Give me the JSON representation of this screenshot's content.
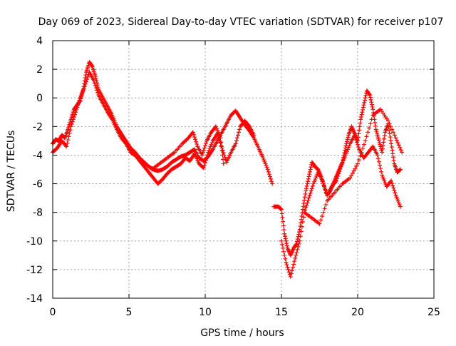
{
  "chart_data": {
    "type": "scatter",
    "title": "Day 069 of 2023, Sidereal Day-to-day VTEC variation (SDTVAR) for receiver p107",
    "xlabel": "GPS time / hours",
    "ylabel": "SDTVAR / TECUs",
    "xlim": [
      0,
      25
    ],
    "ylim": [
      -14,
      4
    ],
    "xticks": [
      0,
      5,
      10,
      15,
      20,
      25
    ],
    "yticks": [
      -14,
      -12,
      -10,
      -8,
      -6,
      -4,
      -2,
      0,
      2,
      4
    ],
    "grid": true,
    "legend": "none",
    "marker": "plus",
    "series_color": "#ff0000",
    "series": [
      {
        "x": [
          0.0,
          0.2,
          0.4,
          0.6,
          0.8,
          1.0,
          1.2,
          1.4,
          1.6,
          1.8,
          2.0,
          2.2,
          2.4,
          2.6,
          2.8,
          3.0,
          3.3,
          3.6,
          3.9,
          4.2,
          4.5,
          4.8,
          5.1,
          5.4,
          5.7,
          6.0,
          6.3,
          6.6,
          6.9,
          7.2,
          7.5,
          7.8,
          8.1,
          8.4,
          8.7,
          9.0,
          9.3,
          9.6,
          9.9,
          10.2,
          10.5,
          10.8,
          11.1,
          11.4,
          11.7,
          12.0,
          12.3,
          12.6,
          12.9,
          13.2,
          13.5,
          13.8,
          14.1,
          14.4
        ],
        "y": [
          -3.2,
          -2.9,
          -3.0,
          -2.6,
          -2.8,
          -2.2,
          -1.5,
          -0.8,
          -0.5,
          -0.2,
          0.6,
          1.8,
          2.5,
          2.2,
          1.5,
          0.6,
          0.0,
          -0.6,
          -1.2,
          -2.0,
          -2.5,
          -3.0,
          -3.5,
          -3.8,
          -4.2,
          -4.5,
          -4.8,
          -5.0,
          -5.1,
          -5.0,
          -4.8,
          -4.5,
          -4.3,
          -4.1,
          -4.0,
          -3.8,
          -3.6,
          -4.2,
          -4.4,
          -4.1,
          -3.6,
          -3.0,
          -2.4,
          -1.8,
          -1.2,
          -0.9,
          -1.4,
          -1.9,
          -2.3,
          -2.8,
          -3.5,
          -4.2,
          -5.0,
          -6.0
        ]
      },
      {
        "x": [
          0.0,
          0.3,
          0.6,
          0.9,
          1.2,
          1.5,
          1.8,
          2.1,
          2.4,
          2.7,
          3.0,
          3.3,
          3.6,
          3.9,
          4.2,
          4.5,
          4.8,
          5.1,
          5.4,
          5.7,
          6.0,
          6.3,
          6.6,
          6.9,
          7.2,
          7.5,
          7.8,
          8.1,
          8.4,
          8.7,
          9.0,
          9.3,
          9.6,
          9.9,
          10.2,
          10.5,
          10.8,
          11.1,
          11.4,
          11.7,
          12.0,
          12.3,
          12.6,
          12.9,
          13.2
        ],
        "y": [
          -3.8,
          -3.5,
          -3.0,
          -3.4,
          -2.0,
          -1.0,
          0.0,
          0.8,
          1.8,
          1.2,
          0.2,
          -0.4,
          -1.0,
          -1.5,
          -2.2,
          -2.8,
          -3.2,
          -3.8,
          -4.0,
          -4.4,
          -4.8,
          -5.2,
          -5.6,
          -6.0,
          -5.7,
          -5.3,
          -5.0,
          -4.8,
          -4.6,
          -4.2,
          -4.4,
          -3.9,
          -4.6,
          -4.9,
          -3.8,
          -3.0,
          -2.5,
          -3.5,
          -4.5,
          -3.8,
          -3.2,
          -2.0,
          -1.6,
          -2.0,
          -2.6
        ]
      },
      {
        "x": [
          6.5,
          7.0,
          7.5,
          8.0,
          8.5,
          8.9,
          9.2,
          9.5,
          9.8,
          10.1,
          10.4,
          10.7,
          11.0,
          11.2
        ],
        "y": [
          -5.0,
          -4.6,
          -4.2,
          -3.8,
          -3.2,
          -2.8,
          -2.4,
          -3.4,
          -4.0,
          -3.0,
          -2.4,
          -2.0,
          -2.8,
          -4.6
        ]
      },
      {
        "x": [
          14.5,
          14.8,
          15.0,
          15.2,
          15.4,
          15.6,
          15.8,
          16.0,
          16.2,
          16.4,
          16.6,
          16.8,
          17.0,
          17.2,
          17.4,
          17.6,
          17.8,
          18.0,
          18.2,
          18.4,
          18.6,
          18.8,
          19.0,
          19.2,
          19.4,
          19.6,
          19.8,
          20.0,
          20.2,
          20.4,
          20.6,
          20.8,
          21.0,
          21.2,
          21.4,
          21.6,
          21.8,
          22.0,
          22.2,
          22.4,
          22.6,
          22.8
        ],
        "y": [
          -7.6,
          -7.6,
          -7.8,
          -9.5,
          -10.5,
          -11.0,
          -10.5,
          -10.2,
          -9.2,
          -7.8,
          -6.5,
          -5.5,
          -4.5,
          -4.8,
          -5.0,
          -5.5,
          -6.2,
          -6.8,
          -6.5,
          -6.0,
          -5.5,
          -5.0,
          -4.5,
          -3.5,
          -2.6,
          -2.0,
          -2.5,
          -3.0,
          -1.5,
          -0.5,
          0.5,
          0.2,
          -0.8,
          -2.2,
          -3.0,
          -3.8,
          -2.4,
          -1.8,
          -3.2,
          -4.6,
          -5.2,
          -5.0
        ]
      },
      {
        "x": [
          15.0,
          15.3,
          15.6,
          15.9,
          16.2,
          16.5,
          16.8,
          17.1,
          17.4,
          17.7,
          18.0,
          18.3,
          18.6,
          18.9,
          19.2,
          19.5,
          19.8,
          20.1,
          20.4,
          20.7,
          21.0,
          21.3,
          21.6,
          21.9,
          22.2,
          22.5,
          22.8
        ],
        "y": [
          -10.0,
          -11.5,
          -12.5,
          -11.2,
          -10.0,
          -8.0,
          -7.0,
          -6.0,
          -5.2,
          -5.8,
          -6.8,
          -6.2,
          -5.8,
          -4.8,
          -4.0,
          -3.2,
          -2.6,
          -3.6,
          -4.2,
          -3.8,
          -3.4,
          -4.0,
          -5.4,
          -6.2,
          -5.8,
          -6.8,
          -7.6
        ]
      },
      {
        "x": [
          16.5,
          17.0,
          17.5,
          18.0,
          18.5,
          19.0,
          19.5,
          20.0,
          20.5,
          21.0,
          21.5,
          22.0,
          22.5,
          22.9
        ],
        "y": [
          -8.0,
          -8.4,
          -8.8,
          -7.2,
          -6.6,
          -6.0,
          -5.6,
          -4.6,
          -3.0,
          -1.2,
          -0.8,
          -1.6,
          -2.8,
          -3.8
        ]
      }
    ]
  }
}
